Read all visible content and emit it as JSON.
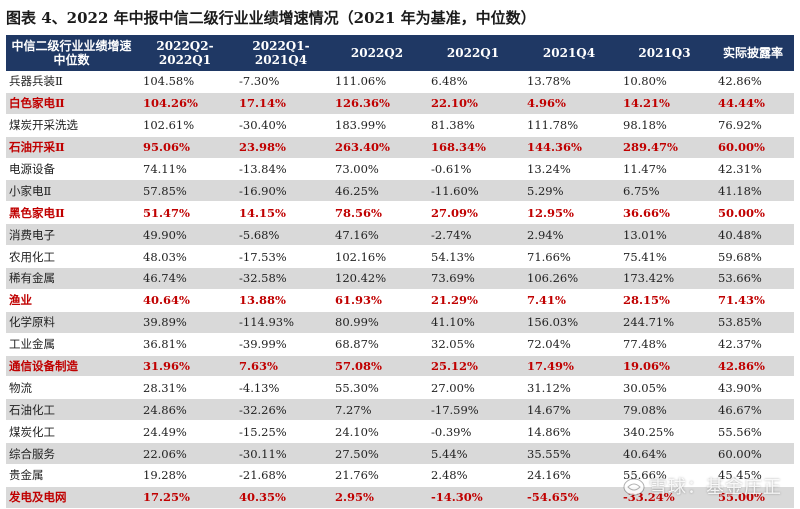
{
  "title": "图表 4、2022 年中报中信二级行业业绩增速情况（2021 年为基准，中位数）",
  "columns": [
    "中信二级行业业绩增速中位数",
    "2022Q2-2022Q1",
    "2022Q1-2021Q4",
    "2022Q2",
    "2022Q1",
    "2021Q4",
    "2021Q3",
    "实际披露率"
  ],
  "rows": [
    {
      "name": "兵器兵装Ⅱ",
      "highlight": false,
      "values": [
        "104.58%",
        "-7.30%",
        "111.06%",
        "6.48%",
        "13.78%",
        "10.80%",
        "42.86%"
      ]
    },
    {
      "name": "白色家电Ⅱ",
      "highlight": true,
      "values": [
        "104.26%",
        "17.14%",
        "126.36%",
        "22.10%",
        "4.96%",
        "14.21%",
        "44.44%"
      ]
    },
    {
      "name": "煤炭开采洗选",
      "highlight": false,
      "values": [
        "102.61%",
        "-30.40%",
        "183.99%",
        "81.38%",
        "111.78%",
        "98.18%",
        "76.92%"
      ]
    },
    {
      "name": "石油开采Ⅱ",
      "highlight": true,
      "values": [
        "95.06%",
        "23.98%",
        "263.40%",
        "168.34%",
        "144.36%",
        "289.47%",
        "60.00%"
      ]
    },
    {
      "name": "电源设备",
      "highlight": false,
      "values": [
        "74.11%",
        "-13.84%",
        "73.00%",
        "-0.61%",
        "13.24%",
        "11.47%",
        "42.31%"
      ]
    },
    {
      "name": "小家电Ⅱ",
      "highlight": false,
      "values": [
        "57.85%",
        "-16.90%",
        "46.25%",
        "-11.60%",
        "5.29%",
        "6.75%",
        "41.18%"
      ]
    },
    {
      "name": "黑色家电Ⅱ",
      "highlight": true,
      "values": [
        "51.47%",
        "14.15%",
        "78.56%",
        "27.09%",
        "12.95%",
        "36.66%",
        "50.00%"
      ]
    },
    {
      "name": "消费电子",
      "highlight": false,
      "values": [
        "49.90%",
        "-5.68%",
        "47.16%",
        "-2.74%",
        "2.94%",
        "13.01%",
        "40.48%"
      ]
    },
    {
      "name": "农用化工",
      "highlight": false,
      "values": [
        "48.03%",
        "-17.53%",
        "102.16%",
        "54.13%",
        "71.66%",
        "75.41%",
        "59.68%"
      ]
    },
    {
      "name": "稀有金属",
      "highlight": false,
      "values": [
        "46.74%",
        "-32.58%",
        "120.42%",
        "73.69%",
        "106.26%",
        "173.42%",
        "53.66%"
      ]
    },
    {
      "name": "渔业",
      "highlight": true,
      "values": [
        "40.64%",
        "13.88%",
        "61.93%",
        "21.29%",
        "7.41%",
        "28.15%",
        "71.43%"
      ]
    },
    {
      "name": "化学原料",
      "highlight": false,
      "values": [
        "39.89%",
        "-114.93%",
        "80.99%",
        "41.10%",
        "156.03%",
        "244.71%",
        "53.85%"
      ]
    },
    {
      "name": "工业金属",
      "highlight": false,
      "values": [
        "36.81%",
        "-39.99%",
        "68.87%",
        "32.05%",
        "72.04%",
        "77.48%",
        "42.37%"
      ]
    },
    {
      "name": "通信设备制造",
      "highlight": true,
      "values": [
        "31.96%",
        "7.63%",
        "57.08%",
        "25.12%",
        "17.49%",
        "19.06%",
        "42.86%"
      ]
    },
    {
      "name": "物流",
      "highlight": false,
      "values": [
        "28.31%",
        "-4.13%",
        "55.30%",
        "27.00%",
        "31.12%",
        "30.05%",
        "43.90%"
      ]
    },
    {
      "name": "石油化工",
      "highlight": false,
      "values": [
        "24.86%",
        "-32.26%",
        "7.27%",
        "-17.59%",
        "14.67%",
        "79.08%",
        "46.67%"
      ]
    },
    {
      "name": "煤炭化工",
      "highlight": false,
      "values": [
        "24.49%",
        "-15.25%",
        "24.10%",
        "-0.39%",
        "14.86%",
        "340.25%",
        "55.56%"
      ]
    },
    {
      "name": "综合服务",
      "highlight": false,
      "values": [
        "22.06%",
        "-30.11%",
        "27.50%",
        "5.44%",
        "35.55%",
        "40.64%",
        "60.00%"
      ]
    },
    {
      "name": "贵金属",
      "highlight": false,
      "values": [
        "19.28%",
        "-21.68%",
        "21.76%",
        "2.48%",
        "24.16%",
        "55.66%",
        "45.45%"
      ]
    },
    {
      "name": "发电及电网",
      "highlight": true,
      "values": [
        "17.25%",
        "40.35%",
        "2.95%",
        "-14.30%",
        "-54.65%",
        "-33.24%",
        "55.00%"
      ]
    }
  ],
  "watermark": "雪球：基金庄正",
  "colors": {
    "header_bg": "#1f3864",
    "highlight_text": "#c00000",
    "stripe": "#d9d9d9"
  }
}
